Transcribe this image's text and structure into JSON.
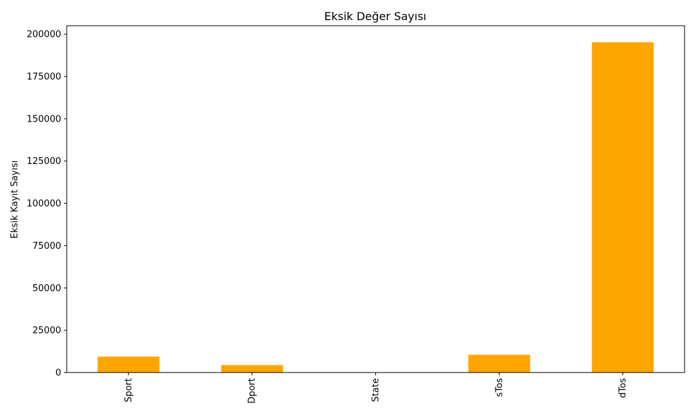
{
  "chart_data": {
    "type": "bar",
    "title": "Eksik Değer Sayısı",
    "xlabel": "",
    "ylabel": "Eksik Kayıt Sayısı",
    "categories": [
      "Sport",
      "Dport",
      "State",
      "sTos",
      "dTos"
    ],
    "values": [
      9400,
      4400,
      10,
      10500,
      195200
    ],
    "ylim": [
      0,
      205000
    ],
    "yticks": [
      0,
      25000,
      50000,
      75000,
      100000,
      125000,
      150000,
      175000,
      200000
    ],
    "x_tick_rotation": "vertical",
    "grid": false,
    "legend": "none",
    "bar_color": "#FFA500"
  }
}
